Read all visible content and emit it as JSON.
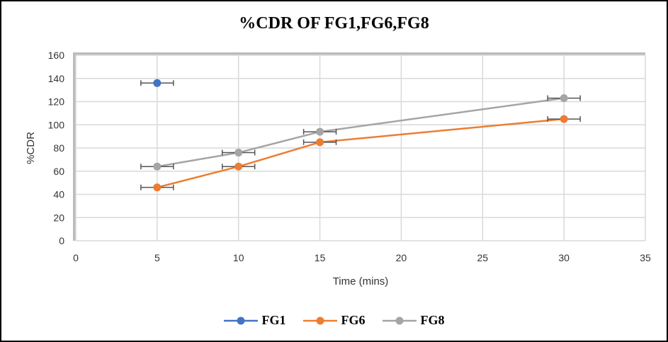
{
  "chart_data": {
    "type": "scatter",
    "title": "%CDR OF FG1,FG6,FG8",
    "xlabel": "Time (mins)",
    "ylabel": "%CDR",
    "xlim": [
      0,
      35
    ],
    "ylim": [
      0,
      160
    ],
    "xticks": [
      0,
      5,
      10,
      15,
      20,
      25,
      30,
      35
    ],
    "yticks": [
      0,
      20,
      40,
      60,
      80,
      100,
      120,
      140,
      160
    ],
    "grid": true,
    "legend_position": "bottom",
    "x_error": 1,
    "series": [
      {
        "name": "FG1",
        "color": "#4472C4",
        "x": [
          5
        ],
        "y": [
          136
        ],
        "line": false
      },
      {
        "name": "FG6",
        "color": "#ED7D31",
        "x": [
          5,
          10,
          15,
          30
        ],
        "y": [
          46,
          64,
          85,
          105
        ],
        "line": true
      },
      {
        "name": "FG8",
        "color": "#A5A5A5",
        "x": [
          5,
          10,
          15,
          30
        ],
        "y": [
          64,
          76,
          94,
          123
        ],
        "line": true
      }
    ]
  }
}
